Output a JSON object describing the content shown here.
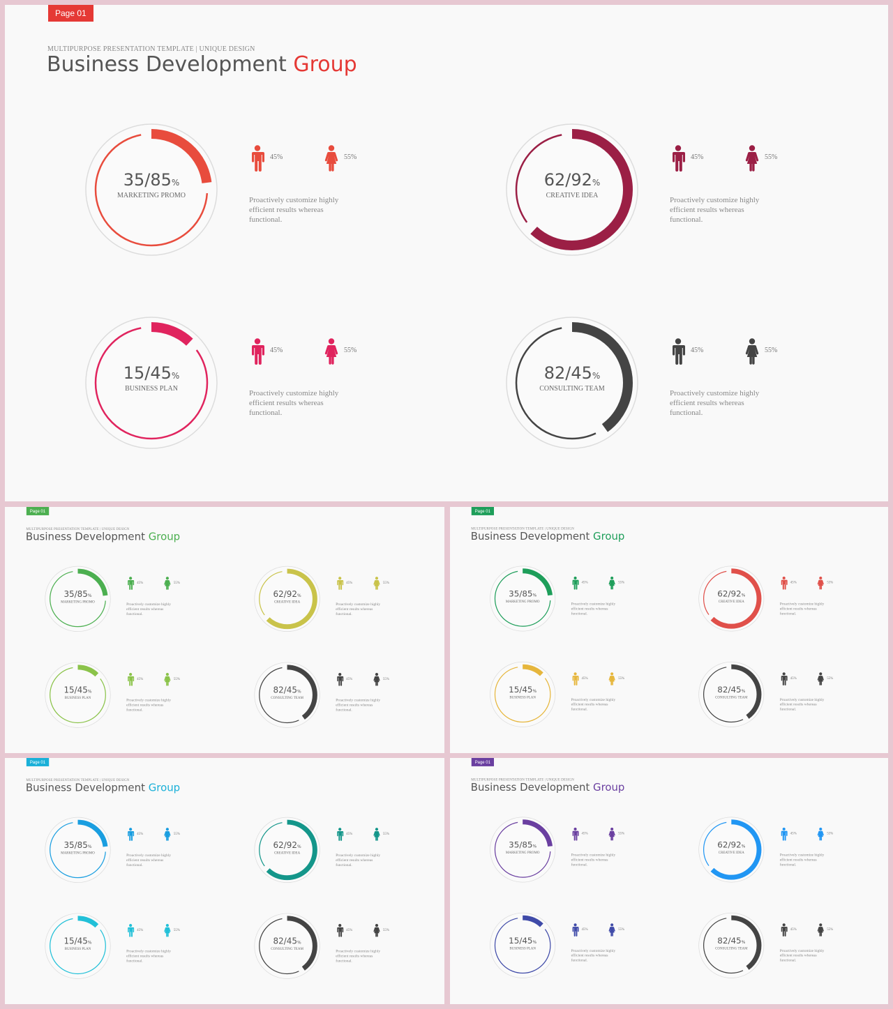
{
  "slides": [
    {
      "page_tag": "Page 01",
      "subtitle": "MULTIPURPOSE PRESENTATION TEMPLATE | UNIQUE DESIGN",
      "title_main": "Business Development",
      "title_accent": "Group",
      "accent_color": "#e53935",
      "stats": [
        {
          "value": "35/85",
          "unit": "%",
          "label": "MARKETING PROMO",
          "male_pct": "45%",
          "female_pct": "55%",
          "description": "Proactively customize highly efficient results whereas functional.",
          "color": "#e84c3d",
          "progress": 0.23
        },
        {
          "value": "62/92",
          "unit": "%",
          "label": "CREATIVE IDEA",
          "male_pct": "45%",
          "female_pct": "55%",
          "description": "Proactively customize highly efficient results whereas functional.",
          "color": "#9b1f45",
          "progress": 0.62
        },
        {
          "value": "15/45",
          "unit": "%",
          "label": "BUSINESS PLAN",
          "male_pct": "45%",
          "female_pct": "55%",
          "description": "Proactively customize highly efficient results whereas functional.",
          "color": "#e0245e",
          "progress": 0.12
        },
        {
          "value": "82/45",
          "unit": "%",
          "label": "CONSULTING TEAM",
          "male_pct": "45%",
          "female_pct": "55%",
          "description": "Proactively customize highly efficient results whereas functional.",
          "color": "#444444",
          "progress": 0.4
        }
      ]
    },
    {
      "page_tag": "Page 01",
      "subtitle": "MULTIPURPOSE PRESENTATION TEMPLATE | UNIQUE DESIGN",
      "title_main": "Business Development",
      "title_accent": "Group",
      "accent_color": "#4caf50",
      "stats": [
        {
          "value": "35/85",
          "unit": "%",
          "label": "MARKETING PROMO",
          "male_pct": "45%",
          "female_pct": "55%",
          "description": "Proactively customize highly efficient results whereas functional.",
          "color": "#4caf50",
          "progress": 0.23
        },
        {
          "value": "62/92",
          "unit": "%",
          "label": "CREATIVE IDEA",
          "male_pct": "45%",
          "female_pct": "55%",
          "description": "Proactively customize highly efficient results whereas functional.",
          "color": "#c9c34a",
          "progress": 0.62
        },
        {
          "value": "15/45",
          "unit": "%",
          "label": "BUSINESS PLAN",
          "male_pct": "45%",
          "female_pct": "55%",
          "description": "Proactively customize highly efficient results whereas functional.",
          "color": "#8bc34a",
          "progress": 0.12
        },
        {
          "value": "82/45",
          "unit": "%",
          "label": "CONSULTING TEAM",
          "male_pct": "45%",
          "female_pct": "55%",
          "description": "Proactively customize highly efficient results whereas functional.",
          "color": "#444444",
          "progress": 0.4
        }
      ]
    },
    {
      "page_tag": "Page 01",
      "subtitle": "MULTIPURPOSE PRESENTATION TEMPLATE | UNIQUE DESIGN",
      "title_main": "Business Development",
      "title_accent": "Group",
      "accent_color": "#1e9e5a",
      "stats": [
        {
          "value": "35/85",
          "unit": "%",
          "label": "MARKETING PROMO",
          "male_pct": "45%",
          "female_pct": "55%",
          "description": "Proactively customize highly efficient results whereas functional.",
          "color": "#1e9e5a",
          "progress": 0.23
        },
        {
          "value": "62/92",
          "unit": "%",
          "label": "CREATIVE IDEA",
          "male_pct": "45%",
          "female_pct": "55%",
          "description": "Proactively customize highly efficient results whereas functional.",
          "color": "#e0504a",
          "progress": 0.62
        },
        {
          "value": "15/45",
          "unit": "%",
          "label": "BUSINESS PLAN",
          "male_pct": "45%",
          "female_pct": "55%",
          "description": "Proactively customize highly efficient results whereas functional.",
          "color": "#e6b63c",
          "progress": 0.12
        },
        {
          "value": "82/45",
          "unit": "%",
          "label": "CONSULTING TEAM",
          "male_pct": "45%",
          "female_pct": "55%",
          "description": "Proactively customize highly efficient results whereas functional.",
          "color": "#444444",
          "progress": 0.4
        }
      ]
    },
    {
      "page_tag": "Page 01",
      "subtitle": "MULTIPURPOSE PRESENTATION TEMPLATE | UNIQUE DESIGN",
      "title_main": "Business Development",
      "title_accent": "Group",
      "accent_color": "#1ab0d8",
      "stats": [
        {
          "value": "35/85",
          "unit": "%",
          "label": "MARKETING PROMO",
          "male_pct": "45%",
          "female_pct": "55%",
          "description": "Proactively customize highly efficient results whereas functional.",
          "color": "#1a9ee0",
          "progress": 0.23
        },
        {
          "value": "62/92",
          "unit": "%",
          "label": "CREATIVE IDEA",
          "male_pct": "45%",
          "female_pct": "55%",
          "description": "Proactively customize highly efficient results whereas functional.",
          "color": "#14968a",
          "progress": 0.62
        },
        {
          "value": "15/45",
          "unit": "%",
          "label": "BUSINESS PLAN",
          "male_pct": "45%",
          "female_pct": "55%",
          "description": "Proactively customize highly efficient results whereas functional.",
          "color": "#22c0d8",
          "progress": 0.12
        },
        {
          "value": "82/45",
          "unit": "%",
          "label": "CONSULTING TEAM",
          "male_pct": "45%",
          "female_pct": "55%",
          "description": "Proactively customize highly efficient results whereas functional.",
          "color": "#444444",
          "progress": 0.4
        }
      ]
    },
    {
      "page_tag": "Page 01",
      "subtitle": "MULTIPURPOSE PRESENTATION TEMPLATE | UNIQUE DESIGN",
      "title_main": "Business Development",
      "title_accent": "Group",
      "accent_color": "#6a3fa0",
      "stats": [
        {
          "value": "35/85",
          "unit": "%",
          "label": "MARKETING PROMO",
          "male_pct": "45%",
          "female_pct": "55%",
          "description": "Proactively customize highly efficient results whereas functional.",
          "color": "#6a3fa0",
          "progress": 0.23
        },
        {
          "value": "62/92",
          "unit": "%",
          "label": "CREATIVE IDEA",
          "male_pct": "45%",
          "female_pct": "55%",
          "description": "Proactively customize highly efficient results whereas functional.",
          "color": "#2196f3",
          "progress": 0.62
        },
        {
          "value": "15/45",
          "unit": "%",
          "label": "BUSINESS PLAN",
          "male_pct": "45%",
          "female_pct": "55%",
          "description": "Proactively customize highly efficient results whereas functional.",
          "color": "#3f4aa8",
          "progress": 0.12
        },
        {
          "value": "82/45",
          "unit": "%",
          "label": "CONSULTING TEAM",
          "male_pct": "45%",
          "female_pct": "55%",
          "description": "Proactively customize highly efficient results whereas functional.",
          "color": "#444444",
          "progress": 0.4
        }
      ]
    }
  ]
}
